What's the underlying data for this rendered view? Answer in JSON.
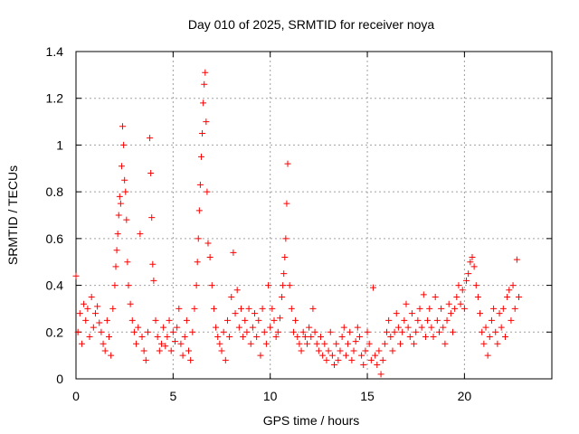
{
  "chart_data": {
    "type": "scatter",
    "title": "Day 010 of 2025, SRMTID for receiver noya",
    "xlabel": "GPS time / hours",
    "ylabel": "SRMTID / TECUs",
    "xlim": [
      0,
      24.5
    ],
    "ylim": [
      0,
      1.4
    ],
    "x_ticks": [
      0,
      5,
      10,
      15,
      20
    ],
    "x_tick_labels": [
      "0",
      "5",
      "10",
      "15",
      "20"
    ],
    "y_ticks": [
      0,
      0.2,
      0.4,
      0.6,
      0.8,
      1.0,
      1.2,
      1.4
    ],
    "y_tick_labels": [
      "0",
      "0.2",
      "0.4",
      "0.6",
      "0.8",
      "1",
      "1.2",
      "1.4"
    ],
    "grid": true,
    "marker": "plus",
    "color": "#ff0000",
    "series": [
      {
        "name": "SRMTID",
        "x": [
          0.0,
          0.1,
          0.2,
          0.3,
          0.4,
          0.5,
          0.6,
          0.7,
          0.8,
          0.9,
          1.0,
          1.1,
          1.2,
          1.3,
          1.4,
          1.5,
          1.6,
          1.7,
          1.8,
          1.9,
          2.0,
          2.05,
          2.1,
          2.15,
          2.2,
          2.25,
          2.3,
          2.35,
          2.4,
          2.45,
          2.5,
          2.55,
          2.6,
          2.65,
          2.7,
          2.8,
          2.9,
          3.0,
          3.1,
          3.2,
          3.3,
          3.4,
          3.5,
          3.6,
          3.7,
          3.8,
          3.85,
          3.9,
          3.95,
          4.0,
          4.1,
          4.2,
          4.3,
          4.4,
          4.5,
          4.6,
          4.7,
          4.8,
          4.9,
          5.0,
          5.1,
          5.2,
          5.3,
          5.4,
          5.5,
          5.6,
          5.7,
          5.8,
          5.9,
          6.0,
          6.1,
          6.2,
          6.25,
          6.3,
          6.35,
          6.4,
          6.45,
          6.5,
          6.55,
          6.6,
          6.65,
          6.7,
          6.75,
          6.8,
          6.9,
          7.0,
          7.1,
          7.2,
          7.3,
          7.4,
          7.5,
          7.6,
          7.7,
          7.8,
          7.9,
          8.0,
          8.1,
          8.2,
          8.3,
          8.4,
          8.5,
          8.6,
          8.7,
          8.8,
          8.9,
          9.0,
          9.1,
          9.2,
          9.3,
          9.4,
          9.5,
          9.6,
          9.7,
          9.8,
          9.9,
          10.0,
          10.1,
          10.2,
          10.3,
          10.4,
          10.5,
          10.6,
          10.65,
          10.7,
          10.75,
          10.8,
          10.85,
          10.9,
          11.0,
          11.1,
          11.2,
          11.3,
          11.4,
          11.5,
          11.6,
          11.7,
          11.8,
          11.9,
          12.0,
          12.1,
          12.2,
          12.3,
          12.4,
          12.5,
          12.6,
          12.7,
          12.8,
          12.9,
          13.0,
          13.1,
          13.2,
          13.3,
          13.4,
          13.5,
          13.6,
          13.7,
          13.8,
          13.9,
          14.0,
          14.1,
          14.2,
          14.3,
          14.4,
          14.5,
          14.6,
          14.7,
          14.8,
          14.9,
          15.0,
          15.1,
          15.2,
          15.3,
          15.4,
          15.5,
          15.6,
          15.7,
          15.8,
          15.9,
          16.0,
          16.1,
          16.2,
          16.3,
          16.4,
          16.5,
          16.6,
          16.7,
          16.8,
          16.9,
          17.0,
          17.1,
          17.2,
          17.3,
          17.4,
          17.5,
          17.6,
          17.7,
          17.8,
          17.9,
          18.0,
          18.1,
          18.2,
          18.3,
          18.4,
          18.5,
          18.6,
          18.7,
          18.8,
          18.9,
          19.0,
          19.1,
          19.2,
          19.3,
          19.4,
          19.5,
          19.6,
          19.7,
          19.8,
          19.9,
          20.0,
          20.1,
          20.2,
          20.3,
          20.4,
          20.5,
          20.6,
          20.7,
          20.8,
          20.9,
          21.0,
          21.1,
          21.2,
          21.3,
          21.4,
          21.5,
          21.6,
          21.7,
          21.8,
          21.9,
          22.0,
          22.1,
          22.2,
          22.3,
          22.4,
          22.5,
          22.6,
          22.7,
          22.8
        ],
        "y": [
          0.44,
          0.2,
          0.28,
          0.15,
          0.32,
          0.25,
          0.3,
          0.18,
          0.35,
          0.22,
          0.28,
          0.31,
          0.24,
          0.2,
          0.15,
          0.12,
          0.25,
          0.18,
          0.1,
          0.3,
          0.4,
          0.48,
          0.55,
          0.62,
          0.7,
          0.78,
          0.75,
          0.91,
          1.08,
          1.0,
          0.85,
          0.8,
          0.68,
          0.5,
          0.4,
          0.32,
          0.25,
          0.2,
          0.15,
          0.22,
          0.62,
          0.18,
          0.12,
          0.08,
          0.2,
          1.03,
          0.88,
          0.69,
          0.49,
          0.42,
          0.25,
          0.18,
          0.12,
          0.15,
          0.22,
          0.14,
          0.18,
          0.25,
          0.12,
          0.2,
          0.16,
          0.22,
          0.3,
          0.15,
          0.1,
          0.18,
          0.25,
          0.12,
          0.08,
          0.2,
          0.3,
          0.4,
          0.5,
          0.6,
          0.72,
          0.83,
          0.95,
          1.05,
          1.18,
          1.26,
          1.31,
          1.1,
          0.8,
          0.58,
          0.52,
          0.4,
          0.3,
          0.22,
          0.18,
          0.15,
          0.12,
          0.2,
          0.08,
          0.25,
          0.18,
          0.35,
          0.54,
          0.28,
          0.38,
          0.22,
          0.3,
          0.18,
          0.25,
          0.2,
          0.3,
          0.15,
          0.22,
          0.28,
          0.18,
          0.25,
          0.1,
          0.3,
          0.2,
          0.15,
          0.4,
          0.22,
          0.3,
          0.25,
          0.18,
          0.2,
          0.26,
          0.35,
          0.4,
          0.45,
          0.52,
          0.6,
          0.75,
          0.92,
          0.4,
          0.3,
          0.2,
          0.25,
          0.18,
          0.15,
          0.12,
          0.2,
          0.18,
          0.15,
          0.22,
          0.18,
          0.3,
          0.2,
          0.15,
          0.12,
          0.18,
          0.1,
          0.15,
          0.08,
          0.12,
          0.2,
          0.1,
          0.06,
          0.15,
          0.08,
          0.12,
          0.18,
          0.22,
          0.1,
          0.15,
          0.2,
          0.08,
          0.12,
          0.16,
          0.22,
          0.18,
          0.1,
          0.06,
          0.12,
          0.2,
          0.15,
          0.08,
          0.39,
          0.1,
          0.06,
          0.12,
          0.02,
          0.08,
          0.15,
          0.2,
          0.25,
          0.18,
          0.12,
          0.2,
          0.28,
          0.22,
          0.15,
          0.2,
          0.25,
          0.32,
          0.22,
          0.18,
          0.28,
          0.15,
          0.2,
          0.25,
          0.3,
          0.22,
          0.36,
          0.18,
          0.25,
          0.3,
          0.22,
          0.18,
          0.35,
          0.25,
          0.2,
          0.3,
          0.22,
          0.15,
          0.25,
          0.32,
          0.28,
          0.2,
          0.3,
          0.35,
          0.4,
          0.32,
          0.38,
          0.3,
          0.42,
          0.45,
          0.5,
          0.52,
          0.48,
          0.4,
          0.35,
          0.28,
          0.2,
          0.15,
          0.22,
          0.1,
          0.18,
          0.25,
          0.3,
          0.2,
          0.15,
          0.28,
          0.22,
          0.3,
          0.18,
          0.35,
          0.38,
          0.25,
          0.4,
          0.3,
          0.51,
          0.35
        ]
      }
    ]
  }
}
